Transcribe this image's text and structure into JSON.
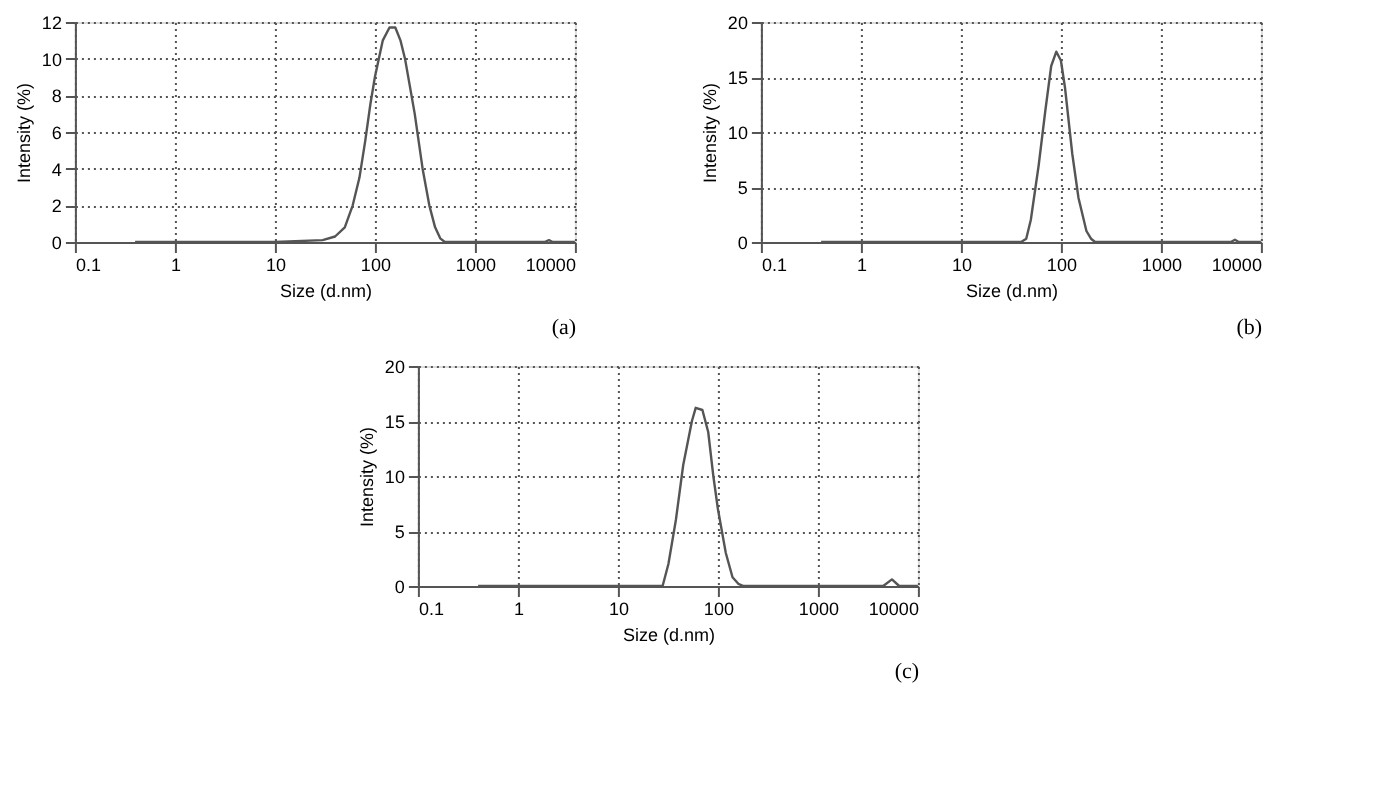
{
  "chart_data": [
    {
      "type": "line",
      "xlabel": "Size (d.nm)",
      "ylabel": "Intensity (%)",
      "log": "x",
      "grid": true,
      "marker": "none",
      "line_style": "solid",
      "xlim": [
        0.1,
        10000
      ],
      "ylim": [
        0,
        12
      ],
      "xticks": [
        0.1,
        1,
        10,
        100,
        1000,
        10000
      ],
      "yticks": [
        0,
        2,
        4,
        6,
        8,
        10,
        12
      ],
      "annotations": [
        "(a)"
      ],
      "series": [
        {
          "color": "#555555",
          "x": [
            0.4,
            1,
            10,
            30,
            40,
            50,
            60,
            70,
            80,
            90,
            100,
            120,
            140,
            160,
            180,
            200,
            250,
            300,
            350,
            400,
            450,
            500,
            1000,
            5000,
            5500,
            6000,
            10000
          ],
          "values": [
            0,
            0,
            0,
            0.1,
            0.3,
            0.8,
            2,
            3.5,
            5.5,
            7.5,
            9,
            11,
            11.7,
            11.7,
            11,
            10,
            7,
            4,
            2,
            0.8,
            0.2,
            0,
            0,
            0,
            0.1,
            0,
            0
          ]
        }
      ]
    },
    {
      "type": "line",
      "xlabel": "Size (d.nm)",
      "ylabel": "Intensity (%)",
      "log": "x",
      "grid": true,
      "marker": "none",
      "line_style": "solid",
      "xlim": [
        0.1,
        10000
      ],
      "ylim": [
        0,
        20
      ],
      "xticks": [
        0.1,
        1,
        10,
        100,
        1000,
        10000
      ],
      "yticks": [
        0,
        5,
        10,
        15,
        20
      ],
      "annotations": [
        "(b)"
      ],
      "series": [
        {
          "color": "#555555",
          "x": [
            0.4,
            1,
            10,
            40,
            45,
            50,
            60,
            70,
            80,
            90,
            100,
            110,
            130,
            150,
            180,
            200,
            220,
            1000,
            5000,
            5500,
            6000,
            10000
          ],
          "values": [
            0,
            0,
            0,
            0,
            0.3,
            2,
            7,
            12,
            16,
            17.3,
            16.5,
            14,
            8,
            4,
            1,
            0.3,
            0,
            0,
            0,
            0.2,
            0,
            0
          ]
        }
      ]
    },
    {
      "type": "line",
      "xlabel": "Size (d.nm)",
      "ylabel": "Intensity (%)",
      "log": "x",
      "grid": true,
      "marker": "none",
      "line_style": "solid",
      "xlim": [
        0.1,
        10000
      ],
      "ylim": [
        0,
        20
      ],
      "xticks": [
        0.1,
        1,
        10,
        100,
        1000,
        10000
      ],
      "yticks": [
        0,
        5,
        10,
        15,
        20
      ],
      "annotations": [
        "(c)"
      ],
      "series": [
        {
          "color": "#555555",
          "x": [
            0.4,
            1,
            10,
            28,
            32,
            38,
            45,
            55,
            60,
            70,
            80,
            90,
            100,
            120,
            140,
            160,
            180,
            1000,
            4500,
            5500,
            6500,
            10000
          ],
          "values": [
            0,
            0,
            0,
            0,
            2,
            6,
            11,
            15,
            16.2,
            16,
            14,
            10,
            7,
            3,
            0.8,
            0.2,
            0,
            0,
            0,
            0.6,
            0,
            0
          ]
        }
      ]
    }
  ]
}
